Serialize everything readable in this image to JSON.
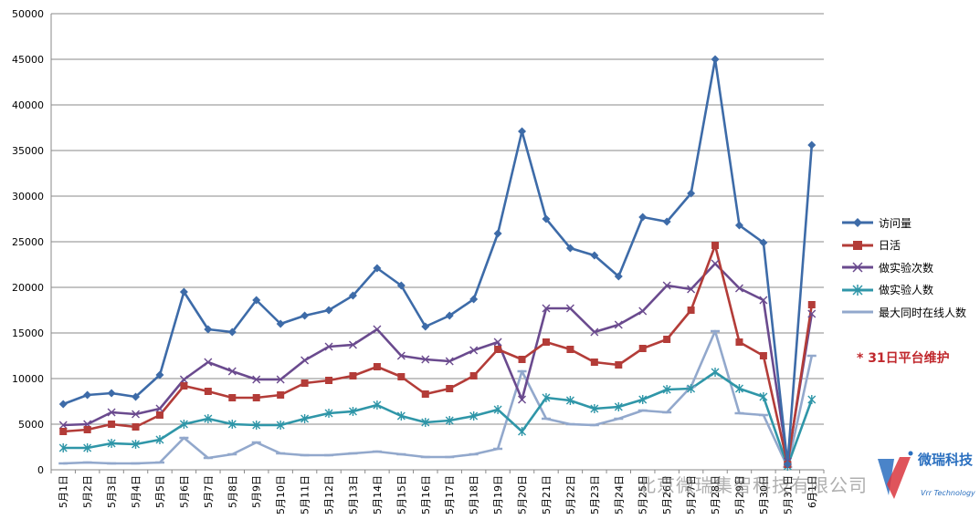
{
  "chart_data": {
    "type": "line",
    "title": "",
    "xlabel": "",
    "ylabel": "",
    "ylim": [
      0,
      50000
    ],
    "yticks": [
      "0",
      "5000",
      "10000",
      "15000",
      "20000",
      "25000",
      "30000",
      "35000",
      "40000",
      "45000",
      "50000"
    ],
    "categories": [
      "5月1日",
      "5月2日",
      "5月3日",
      "5月4日",
      "5月5日",
      "5月6日",
      "5月7日",
      "5月8日",
      "5月9日",
      "5月10日",
      "5月11日",
      "5月12日",
      "5月13日",
      "5月14日",
      "5月15日",
      "5月16日",
      "5月17日",
      "5月18日",
      "5月19日",
      "5月20日",
      "5月21日",
      "5月22日",
      "5月23日",
      "5月24日",
      "5月25日",
      "5月26日",
      "5月27日",
      "5月28日",
      "5月29日",
      "5月30日",
      "5月31日",
      "6月1日"
    ],
    "series": [
      {
        "name": "访问量",
        "color": "#3d6ba8",
        "marker": "diamond",
        "values": [
          7200,
          8200,
          8400,
          8000,
          10400,
          19500,
          15400,
          15100,
          18600,
          16000,
          16900,
          17500,
          19100,
          22100,
          20200,
          15700,
          16900,
          18700,
          25900,
          37100,
          27500,
          24300,
          23500,
          21200,
          27700,
          27200,
          30300,
          45000,
          26800,
          24900,
          600,
          35600
        ]
      },
      {
        "name": "日活",
        "color": "#b33c38",
        "marker": "square",
        "values": [
          4200,
          4400,
          5000,
          4700,
          6000,
          9200,
          8600,
          7900,
          7900,
          8200,
          9500,
          9800,
          10300,
          11300,
          10200,
          8300,
          8900,
          10300,
          13200,
          12100,
          14000,
          13200,
          11800,
          11500,
          13300,
          14300,
          17500,
          24600,
          14000,
          12500,
          600,
          18100
        ]
      },
      {
        "name": "做实验次数",
        "color": "#6a4a8e",
        "marker": "x",
        "values": [
          4900,
          5000,
          6300,
          6100,
          6700,
          9900,
          11800,
          10800,
          9900,
          9900,
          12000,
          13500,
          13700,
          15400,
          12500,
          12100,
          11900,
          13100,
          14000,
          7700,
          17700,
          17700,
          15100,
          15900,
          17400,
          20200,
          19800,
          22600,
          19900,
          18600,
          900,
          17100
        ]
      },
      {
        "name": "做实验人数",
        "color": "#2f96a8",
        "marker": "star",
        "values": [
          2400,
          2400,
          2900,
          2800,
          3300,
          5000,
          5600,
          5000,
          4900,
          4900,
          5600,
          6200,
          6400,
          7100,
          5900,
          5200,
          5400,
          5900,
          6600,
          4200,
          7900,
          7600,
          6700,
          6900,
          7700,
          8800,
          8900,
          10700,
          8900,
          8000,
          400,
          7700
        ]
      },
      {
        "name": "最大同时在线人数",
        "color": "#92a8cc",
        "marker": "dash",
        "values": [
          700,
          800,
          700,
          700,
          800,
          3500,
          1300,
          1700,
          3000,
          1800,
          1600,
          1600,
          1800,
          2000,
          1700,
          1400,
          1400,
          1700,
          2300,
          10800,
          5600,
          5000,
          4900,
          5600,
          6500,
          6300,
          9100,
          15200,
          6200,
          6000,
          300,
          12500
        ]
      }
    ],
    "legend_position": "right",
    "annotation": "* 31日平台维护"
  },
  "watermark": "北京微瑞集智科技有限公司",
  "logo": {
    "title": "微瑞科技",
    "subtitle": "Vrr Technology"
  }
}
